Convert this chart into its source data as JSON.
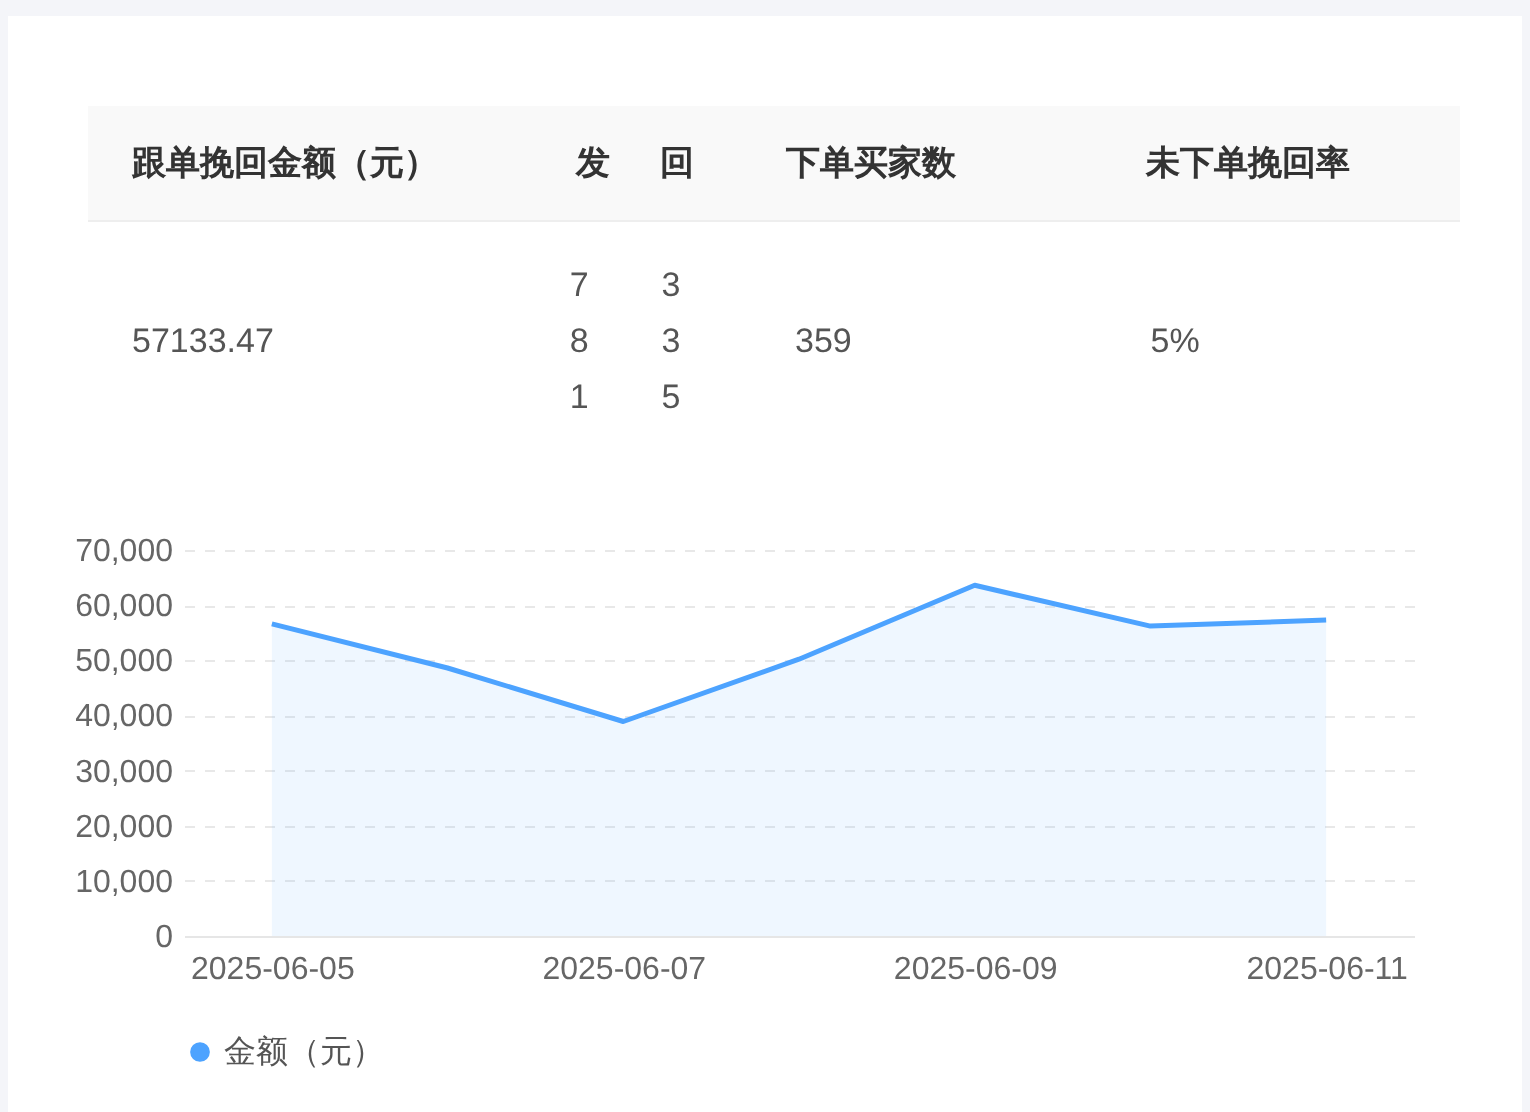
{
  "chart_data": {
    "type": "area",
    "annotations": [
      "跟单挽回金额（元）",
      "发",
      "回",
      "下单买家数",
      "未下单挽回率",
      "57133.47",
      "781",
      "335",
      "359",
      "5%"
    ],
    "categories": [
      "2025-06-05",
      null,
      "2025-06-07",
      null,
      "2025-06-09",
      null,
      "2025-06-11"
    ],
    "series": [
      {
        "name": "金额（元）",
        "color": "#4da3ff",
        "values": [
          56600,
          48600,
          38900,
          50200,
          63600,
          56200,
          57300
        ]
      }
    ],
    "ylim": [
      0,
      70000
    ],
    "yticks": [
      0,
      {
        "value": 10000,
        "label": "10,000"
      },
      {
        "value": 20000,
        "label": "20,000"
      },
      {
        "value": 30000,
        "label": "30,000"
      },
      {
        "value": 40000,
        "label": "40,000"
      },
      {
        "value": 50000,
        "label": "50,000"
      },
      {
        "value": 60000,
        "label": "60,000"
      },
      {
        "value": 70000,
        "label": "70,000"
      }
    ],
    "grid": "y",
    "legend": "bottom"
  }
}
